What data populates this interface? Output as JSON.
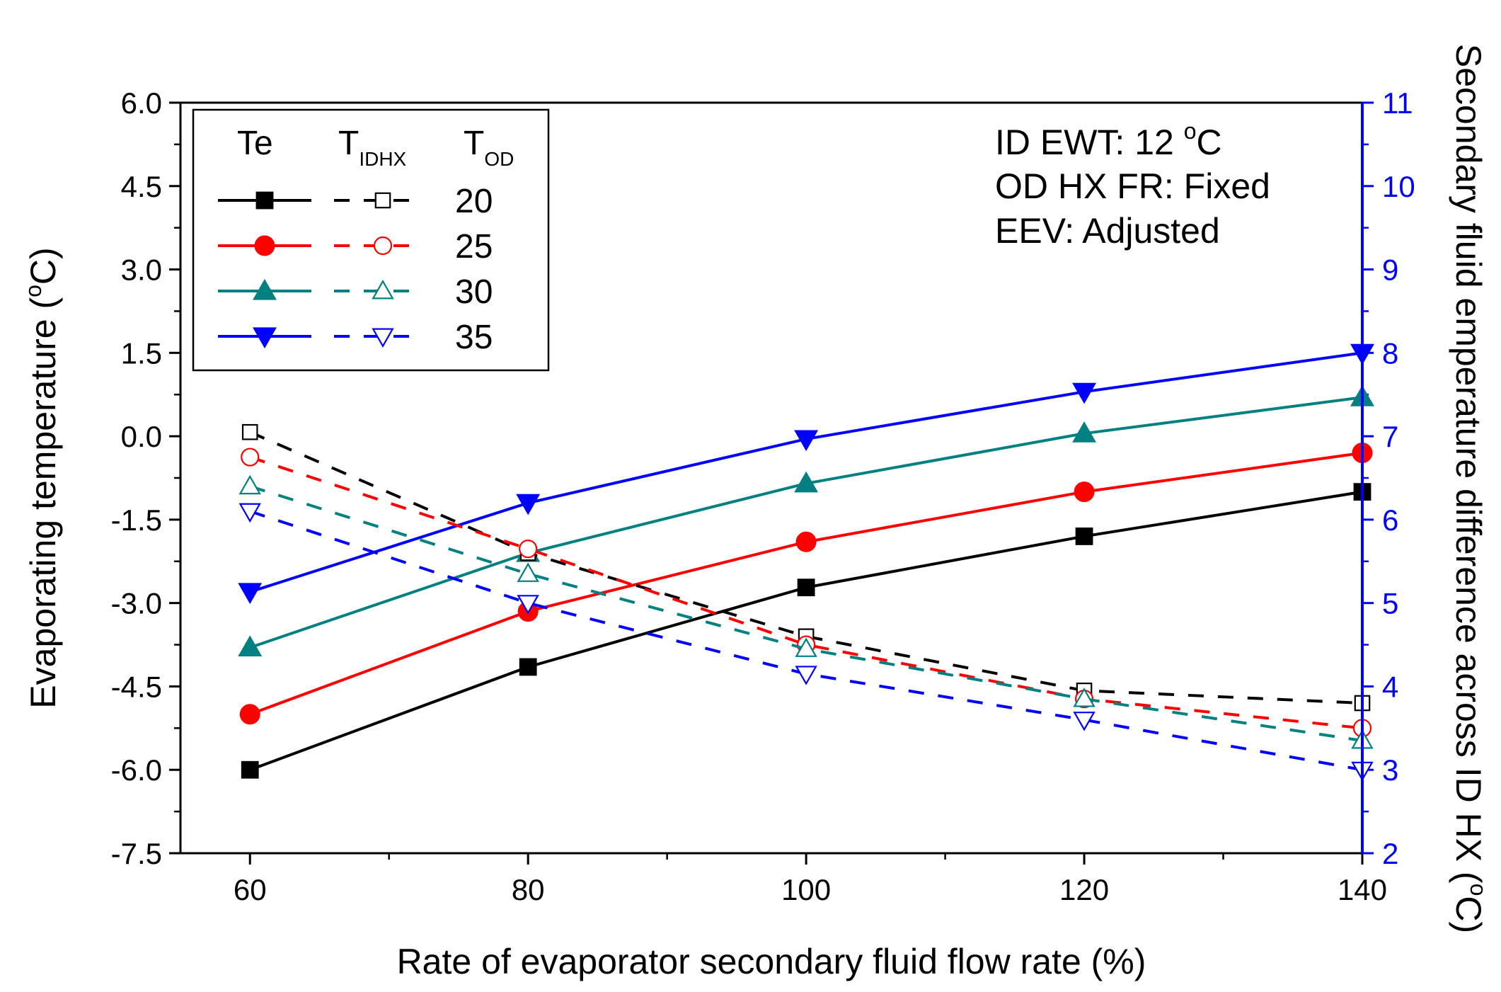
{
  "chart_data": {
    "type": "line",
    "xlabel": "Rate of evaporator secondary fluid flow rate (%)",
    "ylabel_left": "Evaporating temperature (",
    "ylabel_left_sup": "o",
    "ylabel_left_unit": "C)",
    "ylabel_right": "Secondary fluid emperature difference across ID HX (",
    "ylabel_right_sup": "o",
    "ylabel_right_unit": "C)",
    "x": [
      60,
      80,
      100,
      120,
      140
    ],
    "xlim": [
      55,
      140
    ],
    "xticks": [
      "60",
      "80",
      "100",
      "120",
      "140"
    ],
    "ylim_left": [
      -7.5,
      6.0
    ],
    "yticks_left": [
      "-7.5",
      "-6.0",
      "-4.5",
      "-3.0",
      "-1.5",
      "0.0",
      "1.5",
      "3.0",
      "4.5",
      "6.0"
    ],
    "ylim_right": [
      2,
      11
    ],
    "yticks_right": [
      "2",
      "3",
      "4",
      "5",
      "6",
      "7",
      "8",
      "9",
      "10",
      "11"
    ],
    "right_axis_color": "#0000ff",
    "legend": {
      "header_te": "Te",
      "header_tidhx_main": "T",
      "header_tidhx_sub": "IDHX",
      "header_tod_main": "T",
      "header_tod_sub": "OD",
      "labels": [
        "20",
        "25",
        "30",
        "35"
      ]
    },
    "annotations": {
      "line1_main": "ID EWT: 12 ",
      "line1_sup": "o",
      "line1_unit": "C",
      "line2": "OD HX FR: Fixed",
      "line3": "EEV: Adjusted"
    },
    "series": [
      {
        "name": "Te 20",
        "axis": "left",
        "style": "solid",
        "marker": "square",
        "filled": true,
        "color": "#000000",
        "values": [
          -6.0,
          -4.15,
          -2.72,
          -1.8,
          -1.0
        ]
      },
      {
        "name": "Te 25",
        "axis": "left",
        "style": "solid",
        "marker": "circle",
        "filled": true,
        "color": "#ff0000",
        "values": [
          -5.0,
          -3.15,
          -1.9,
          -1.0,
          -0.3
        ]
      },
      {
        "name": "Te 30",
        "axis": "left",
        "style": "solid",
        "marker": "triangle-up",
        "filled": true,
        "color": "#008080",
        "values": [
          -3.8,
          -2.1,
          -0.85,
          0.05,
          0.7
        ]
      },
      {
        "name": "Te 35",
        "axis": "left",
        "style": "solid",
        "marker": "triangle-down",
        "filled": true,
        "color": "#0000ff",
        "values": [
          -2.8,
          -1.2,
          -0.05,
          0.8,
          1.5
        ]
      },
      {
        "name": "TIDHX 20",
        "axis": "right",
        "style": "dashed",
        "marker": "square",
        "filled": false,
        "color": "#000000",
        "values": [
          7.05,
          5.6,
          4.6,
          3.95,
          3.8
        ]
      },
      {
        "name": "TIDHX 25",
        "axis": "right",
        "style": "dashed",
        "marker": "circle",
        "filled": false,
        "color": "#ff0000",
        "values": [
          6.75,
          5.65,
          4.5,
          3.85,
          3.5
        ]
      },
      {
        "name": "TIDHX 30",
        "axis": "right",
        "style": "dashed",
        "marker": "triangle-up",
        "filled": false,
        "color": "#008080",
        "values": [
          6.4,
          5.35,
          4.45,
          3.85,
          3.35
        ]
      },
      {
        "name": "TIDHX 35",
        "axis": "right",
        "style": "dashed",
        "marker": "triangle-down",
        "filled": false,
        "color": "#0000ff",
        "values": [
          6.1,
          5.0,
          4.15,
          3.6,
          3.0
        ]
      }
    ]
  }
}
